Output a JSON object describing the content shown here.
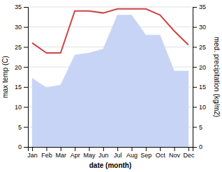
{
  "chart_data": {
    "type": "line",
    "x_label": "date (month)",
    "y_label": "max temp (C)",
    "y2_label": "med. precipitation (kg/m2)",
    "categories": [
      "Jan",
      "Feb",
      "Mar",
      "Apr",
      "May",
      "Jun",
      "Jul",
      "Aug",
      "Sep",
      "Oct",
      "Nov",
      "Dec"
    ],
    "series": [
      {
        "type": "area",
        "axis": "y2",
        "color": "#c8d4f5",
        "values": [
          17.2,
          14.8,
          15.5,
          23.0,
          23.5,
          24.5,
          33.0,
          33.0,
          28.0,
          28.0,
          19.0,
          19.0
        ]
      },
      {
        "type": "line",
        "color": "#cc4444",
        "values": [
          26.0,
          23.5,
          23.5,
          34.0,
          34.0,
          33.5,
          34.5,
          34.5,
          34.5,
          33.0,
          29.0,
          25.5
        ]
      }
    ],
    "ylim": [
      0,
      35
    ],
    "yticks": [
      0,
      5,
      10,
      15,
      20,
      25,
      30,
      35
    ],
    "y2lim": [
      0,
      35
    ],
    "y2ticks": [
      0,
      5,
      10,
      15,
      20,
      25,
      30,
      35
    ],
    "grid": true
  }
}
